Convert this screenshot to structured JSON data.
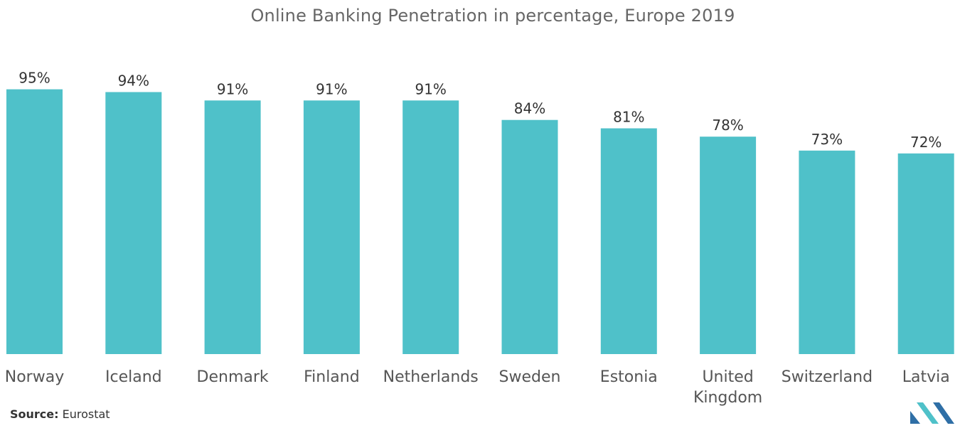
{
  "chart_data": {
    "type": "bar",
    "title": "Online Banking Penetration in percentage, Europe 2019",
    "categories": [
      "Norway",
      "Iceland",
      "Denmark",
      "Finland",
      "Netherlands",
      "Sweden",
      "Estonia",
      "United Kingdom",
      "Switzerland",
      "Latvia"
    ],
    "category_lines": [
      [
        "Norway"
      ],
      [
        "Iceland"
      ],
      [
        "Denmark"
      ],
      [
        "Finland"
      ],
      [
        "Netherlands"
      ],
      [
        "Sweden"
      ],
      [
        "Estonia"
      ],
      [
        "United",
        "Kingdom"
      ],
      [
        "Switzerland"
      ],
      [
        "Latvia"
      ]
    ],
    "values": [
      95,
      94,
      91,
      91,
      91,
      84,
      81,
      78,
      73,
      72
    ],
    "value_labels": [
      "95%",
      "94%",
      "91%",
      "91%",
      "91%",
      "84%",
      "81%",
      "78%",
      "73%",
      "72%"
    ],
    "unit": "%",
    "ylim": [
      0,
      100
    ],
    "xlabel": "",
    "ylabel": "",
    "grid": false,
    "legend": "none",
    "bar_color": "#4fc1c9"
  },
  "source": {
    "label": "Source:",
    "text": "Eurostat"
  },
  "logo": {
    "icon": "mordor-intelligence-logo-icon",
    "colors": [
      "#2f6fa6",
      "#4fc1c9"
    ]
  }
}
